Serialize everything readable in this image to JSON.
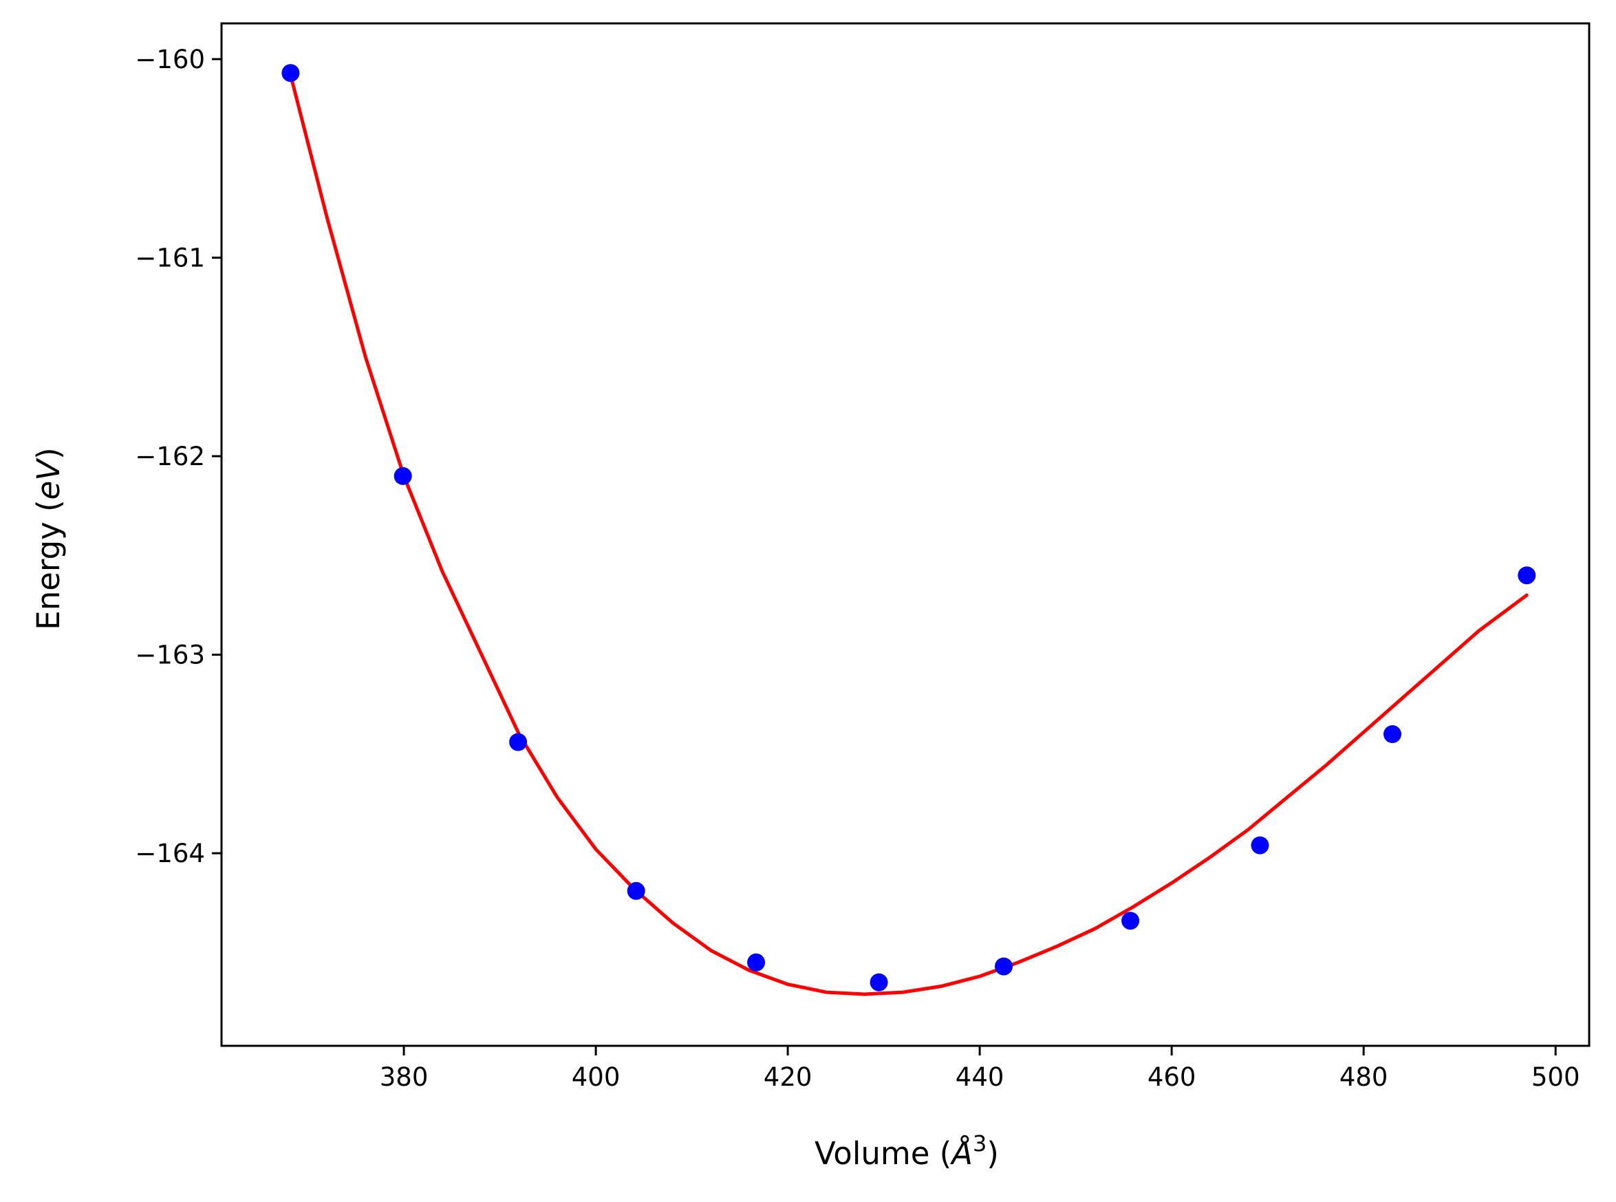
{
  "chart_data": {
    "type": "scatter",
    "title": "",
    "xlabel": {
      "prefix": "Volume (",
      "symbol": "Å",
      "exponent": "3",
      "suffix": ")"
    },
    "ylabel": {
      "prefix": "Energy (",
      "symbol": "eV",
      "suffix": ")"
    },
    "xlim": [
      361,
      503.5
    ],
    "ylim": [
      -164.97,
      -159.82
    ],
    "xticks": [
      380,
      400,
      420,
      440,
      460,
      480,
      500
    ],
    "yticks": [
      -160,
      -161,
      -162,
      -163,
      -164
    ],
    "xtick_labels": [
      "380",
      "400",
      "420",
      "440",
      "460",
      "480",
      "500"
    ],
    "ytick_labels": [
      "−160",
      "−161",
      "−162",
      "−163",
      "−164"
    ],
    "grid": false,
    "points": {
      "color": "#0000ff",
      "x": [
        368.2,
        379.9,
        391.9,
        404.2,
        416.7,
        429.5,
        442.5,
        455.7,
        469.2,
        483.0,
        497.0
      ],
      "y": [
        -160.07,
        -162.1,
        -163.44,
        -164.19,
        -164.55,
        -164.65,
        -164.57,
        -164.34,
        -163.96,
        -163.4,
        -162.6
      ]
    },
    "fit": {
      "color": "#ff0000",
      "x": [
        368.2,
        372.0,
        376.0,
        380.0,
        384.0,
        388.0,
        392.0,
        396.0,
        400.0,
        404.0,
        408.0,
        412.0,
        416.0,
        420.0,
        424.0,
        428.0,
        432.0,
        436.0,
        440.0,
        444.0,
        448.0,
        452.0,
        456.0,
        460.0,
        464.0,
        468.0,
        472.0,
        476.0,
        480.0,
        484.0,
        488.0,
        492.0,
        497.0
      ],
      "y": [
        -160.08,
        -160.8,
        -161.5,
        -162.1,
        -162.58,
        -162.99,
        -163.4,
        -163.72,
        -163.98,
        -164.18,
        -164.35,
        -164.49,
        -164.59,
        -164.66,
        -164.7,
        -164.71,
        -164.7,
        -164.67,
        -164.62,
        -164.55,
        -164.47,
        -164.38,
        -164.27,
        -164.15,
        -164.02,
        -163.88,
        -163.72,
        -163.56,
        -163.39,
        -163.22,
        -163.05,
        -162.88,
        -162.7
      ]
    }
  }
}
